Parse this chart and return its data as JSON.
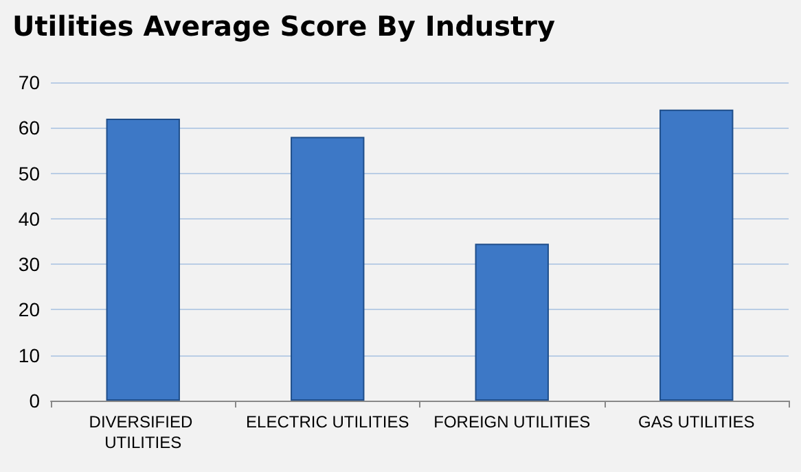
{
  "chart_data": {
    "type": "bar",
    "title": "Utilities Average Score By Industry",
    "categories": [
      "DIVERSIFIED UTILITIES",
      "ELECTRIC UTILITIES",
      "FOREIGN UTILITIES",
      "GAS UTILITIES"
    ],
    "values": [
      62,
      58,
      34.5,
      64
    ],
    "color": "#3d78c6",
    "ylim": [
      0,
      70
    ],
    "yticks": [
      0,
      10,
      20,
      30,
      40,
      50,
      60,
      70
    ],
    "grid": "y"
  }
}
